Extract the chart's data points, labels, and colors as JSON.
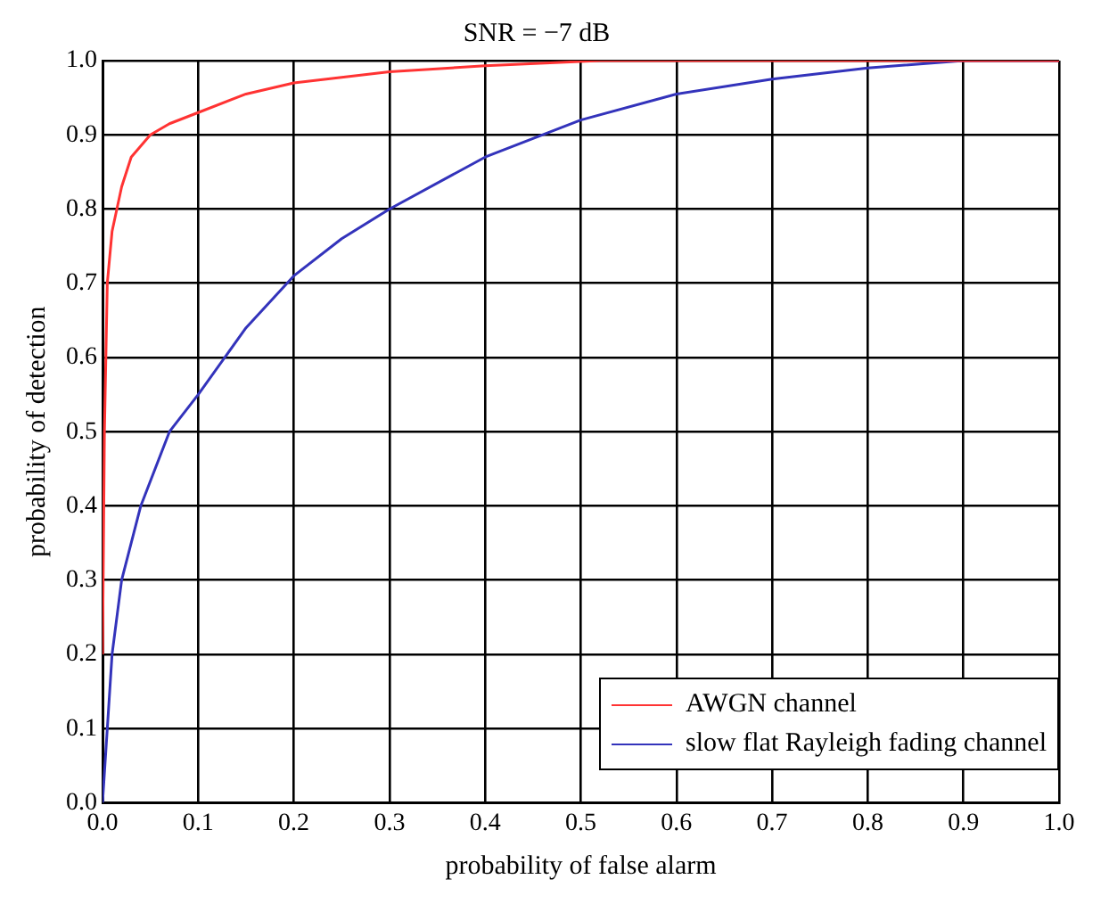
{
  "chart_data": {
    "type": "line",
    "title": "SNR = −7 dB",
    "xlabel": "probability of false alarm",
    "ylabel": "probability of detection",
    "xlim": [
      0,
      1
    ],
    "ylim": [
      0,
      1
    ],
    "xticks": [
      {
        "value": 0,
        "label": "0.0"
      },
      0.1,
      0.2,
      0.3,
      0.4,
      0.5,
      0.6,
      0.7,
      0.8,
      0.9,
      {
        "value": 1,
        "label": "1.0"
      }
    ],
    "yticks": [
      {
        "value": 0,
        "label": "0.0"
      },
      0.1,
      0.2,
      0.3,
      0.4,
      0.5,
      0.6,
      0.7,
      0.8,
      0.9,
      {
        "value": 1,
        "label": "1.0"
      }
    ],
    "grid": true,
    "legend": "bottom right",
    "marker": "none",
    "line_style": "solid",
    "series": [
      {
        "name": "AWGN channel",
        "color": "#ff3333",
        "x": [
          0,
          0.002,
          0.005,
          0.01,
          0.015,
          0.02,
          0.03,
          0.05,
          0.07,
          0.1,
          0.15,
          0.2,
          0.3,
          0.4,
          0.52,
          0.7,
          1.0
        ],
        "values": [
          0.2,
          0.5,
          0.7,
          0.77,
          0.8,
          0.83,
          0.87,
          0.9,
          0.915,
          0.93,
          0.955,
          0.97,
          0.985,
          0.993,
          1.0,
          1.0,
          1.0
        ]
      },
      {
        "name": "slow flat Rayleigh fading channel",
        "color": "#3333bb",
        "x": [
          0,
          0.005,
          0.01,
          0.02,
          0.04,
          0.07,
          0.1,
          0.15,
          0.2,
          0.25,
          0.3,
          0.4,
          0.5,
          0.6,
          0.7,
          0.8,
          0.9,
          1.0
        ],
        "values": [
          0,
          0.1,
          0.2,
          0.3,
          0.4,
          0.5,
          0.55,
          0.64,
          0.71,
          0.76,
          0.8,
          0.87,
          0.92,
          0.955,
          0.975,
          0.99,
          1.0,
          1.0
        ]
      }
    ]
  }
}
